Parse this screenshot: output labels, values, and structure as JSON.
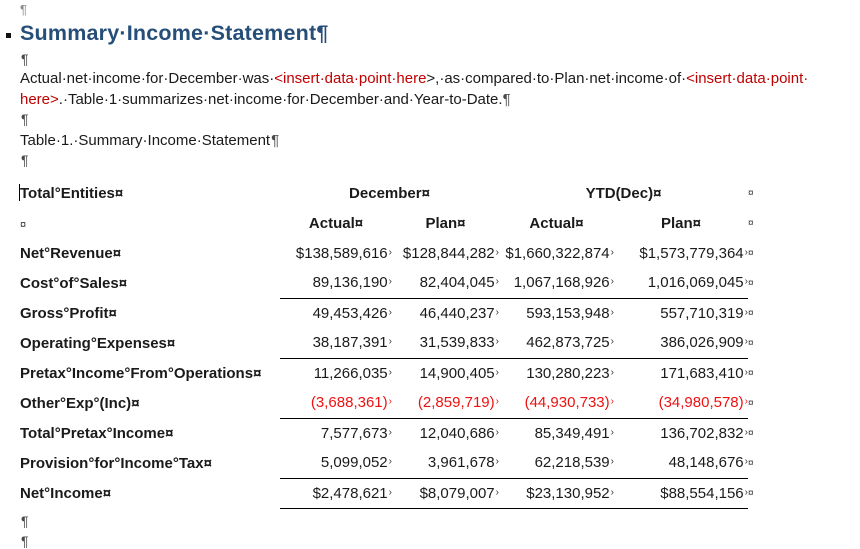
{
  "marks": {
    "pilcrow": "¶",
    "cell_end": "¤",
    "row_end": "¤",
    "tab_mark": "›"
  },
  "colors": {
    "heading_blue": "#254E78",
    "placeholder_red": "#C00000",
    "negative_red": "#EE1111"
  },
  "heading": {
    "text": "Summary·Income·Statement"
  },
  "paragraph": {
    "lines": [
      [
        {
          "text": "Actual·net·income·for·December·was·",
          "red": false
        },
        {
          "text": "<insert·data·point·here",
          "red": true
        },
        {
          "text": ">,·as·compared·to·Plan·net·income·of·",
          "red": false
        },
        {
          "text": "<insert·data·point·",
          "red": true
        }
      ],
      [
        {
          "text": "here>",
          "red": true
        },
        {
          "text": ".·Table·1·summarizes·net·income·for·December·and·Year-to-Date.",
          "red": false
        },
        {
          "text": "¶",
          "red": false,
          "mark": true
        }
      ]
    ]
  },
  "caption": {
    "text": "Table·1.·Summary·Income·Statement"
  },
  "table": {
    "header_row1": {
      "label": "Total°Entities",
      "groups": [
        "December",
        "YTD(Dec)"
      ]
    },
    "header_row2": {
      "cols": [
        "Actual",
        "Plan",
        "Actual",
        "Plan"
      ]
    },
    "rows": [
      {
        "label": "Net°Revenue",
        "values": [
          "$138,589,616",
          "$128,844,282",
          "$1,660,322,874",
          "$1,573,779,364"
        ],
        "red": false,
        "underline": false
      },
      {
        "label": "Cost°of°Sales",
        "values": [
          "89,136,190",
          "82,404,045",
          "1,067,168,926",
          "1,016,069,045"
        ],
        "red": false,
        "underline": true
      },
      {
        "label": "Gross°Profit",
        "values": [
          "49,453,426",
          "46,440,237",
          "593,153,948",
          "557,710,319"
        ],
        "red": false,
        "underline": false
      },
      {
        "label": "Operating°Expenses",
        "values": [
          "38,187,391",
          "31,539,833",
          "462,873,725",
          "386,026,909"
        ],
        "red": false,
        "underline": true
      },
      {
        "label": "Pretax°Income°From°Operations",
        "values": [
          "11,266,035",
          "14,900,405",
          "130,280,223",
          "171,683,410"
        ],
        "red": false,
        "underline": false
      },
      {
        "label": "Other°Exp°(Inc)",
        "values": [
          "(3,688,361)",
          "(2,859,719)",
          "(44,930,733)",
          "(34,980,578)"
        ],
        "red": true,
        "underline": true
      },
      {
        "label": "Total°Pretax°Income",
        "values": [
          "7,577,673",
          "12,040,686",
          "85,349,491",
          "136,702,832"
        ],
        "red": false,
        "underline": false
      },
      {
        "label": "Provision°for°Income°Tax",
        "values": [
          "5,099,052",
          "3,961,678",
          "62,218,539",
          "48,148,676"
        ],
        "red": false,
        "underline": true
      },
      {
        "label": "Net°Income",
        "values": [
          "$2,478,621",
          "$8,079,007",
          "$23,130,952",
          "$88,554,156"
        ],
        "red": false,
        "underline": true
      }
    ]
  }
}
